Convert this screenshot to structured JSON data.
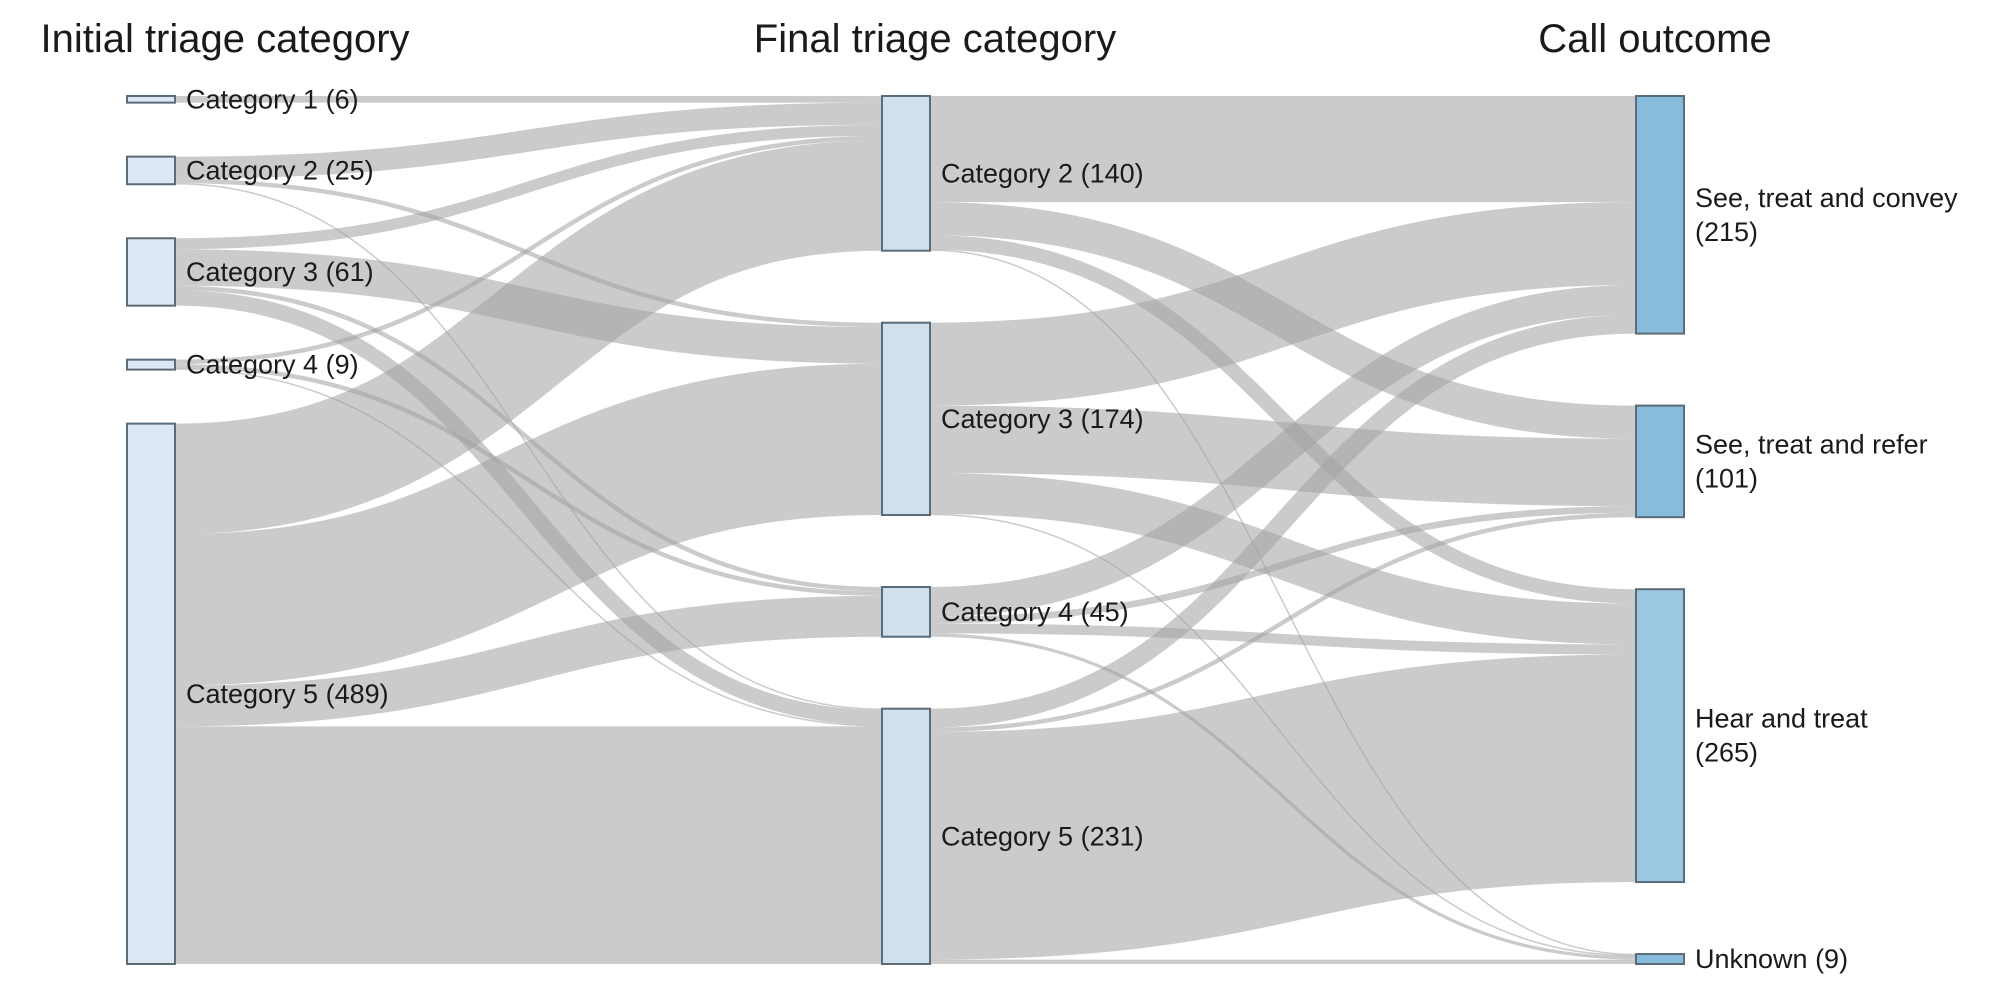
{
  "columns": [
    {
      "id": "initial",
      "title": "Initial triage category"
    },
    {
      "id": "final",
      "title": "Final triage category"
    },
    {
      "id": "outcome",
      "title": "Call outcome"
    }
  ],
  "colors": {
    "initial_node": "#dde6f3",
    "final_node": "#cfe0ee",
    "outcome_node": "#88bcdc",
    "outcome_node_light": "#9cc7e2",
    "link": "#a3a3a3",
    "node_border": "#5c6b78"
  },
  "chart_data": {
    "type": "sankey",
    "title": "",
    "nodes": [
      {
        "id": "i1",
        "column": "initial",
        "label": "Category 1 (6)",
        "value": 6
      },
      {
        "id": "i2",
        "column": "initial",
        "label": "Category 2 (25)",
        "value": 25
      },
      {
        "id": "i3",
        "column": "initial",
        "label": "Category 3 (61)",
        "value": 61
      },
      {
        "id": "i4",
        "column": "initial",
        "label": "Category 4 (9)",
        "value": 9
      },
      {
        "id": "i5",
        "column": "initial",
        "label": "Category 5 (489)",
        "value": 489
      },
      {
        "id": "f2",
        "column": "final",
        "label": "Category 2 (140)",
        "value": 140
      },
      {
        "id": "f3",
        "column": "final",
        "label": "Category 3 (174)",
        "value": 174
      },
      {
        "id": "f4",
        "column": "final",
        "label": "Category 4 (45)",
        "value": 45
      },
      {
        "id": "f5",
        "column": "final",
        "label": "Category 5 (231)",
        "value": 231
      },
      {
        "id": "o1",
        "column": "outcome",
        "label": "See, treat and convey\n(215)",
        "value": 215
      },
      {
        "id": "o2",
        "column": "outcome",
        "label": "See, treat and refer\n(101)",
        "value": 101
      },
      {
        "id": "o3",
        "column": "outcome",
        "label": "Hear and treat\n(265)",
        "value": 265
      },
      {
        "id": "o4",
        "column": "outcome",
        "label": "Unknown (9)",
        "value": 9
      }
    ],
    "links": [
      {
        "source": "i1",
        "target": "f2",
        "value": 6
      },
      {
        "source": "i2",
        "target": "f2",
        "value": 20
      },
      {
        "source": "i2",
        "target": "f3",
        "value": 4
      },
      {
        "source": "i2",
        "target": "f5",
        "value": 1
      },
      {
        "source": "i3",
        "target": "f2",
        "value": 10
      },
      {
        "source": "i3",
        "target": "f3",
        "value": 33
      },
      {
        "source": "i3",
        "target": "f4",
        "value": 4
      },
      {
        "source": "i3",
        "target": "f5",
        "value": 14
      },
      {
        "source": "i4",
        "target": "f2",
        "value": 4
      },
      {
        "source": "i4",
        "target": "f4",
        "value": 4
      },
      {
        "source": "i4",
        "target": "f5",
        "value": 1
      },
      {
        "source": "i5",
        "target": "f2",
        "value": 100
      },
      {
        "source": "i5",
        "target": "f3",
        "value": 137
      },
      {
        "source": "i5",
        "target": "f4",
        "value": 37
      },
      {
        "source": "i5",
        "target": "f5",
        "value": 215
      },
      {
        "source": "f2",
        "target": "o1",
        "value": 96
      },
      {
        "source": "f2",
        "target": "o2",
        "value": 30
      },
      {
        "source": "f2",
        "target": "o3",
        "value": 13
      },
      {
        "source": "f2",
        "target": "o4",
        "value": 1
      },
      {
        "source": "f3",
        "target": "o1",
        "value": 75
      },
      {
        "source": "f3",
        "target": "o2",
        "value": 61
      },
      {
        "source": "f3",
        "target": "o3",
        "value": 37
      },
      {
        "source": "f3",
        "target": "o4",
        "value": 1
      },
      {
        "source": "f4",
        "target": "o1",
        "value": 27
      },
      {
        "source": "f4",
        "target": "o2",
        "value": 6
      },
      {
        "source": "f4",
        "target": "o3",
        "value": 9
      },
      {
        "source": "f4",
        "target": "o4",
        "value": 3
      },
      {
        "source": "f5",
        "target": "o1",
        "value": 17
      },
      {
        "source": "f5",
        "target": "o2",
        "value": 4
      },
      {
        "source": "f5",
        "target": "o3",
        "value": 206
      },
      {
        "source": "f5",
        "target": "o4",
        "value": 4
      }
    ]
  }
}
